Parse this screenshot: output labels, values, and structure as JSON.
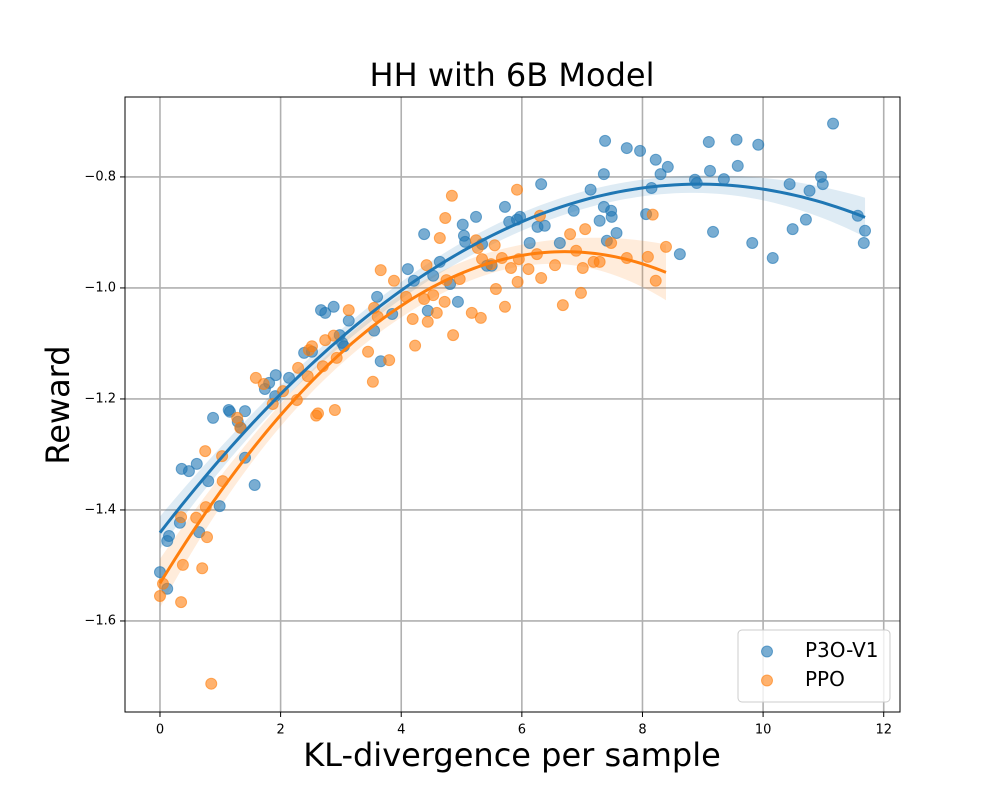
{
  "chart_data": {
    "type": "scatter",
    "title": "HH with 6B Model",
    "x_label": "KL-divergence per sample",
    "y_label": "Reward",
    "xlim": [
      -0.58,
      12.27
    ],
    "ylim": [
      -1.764,
      -0.656
    ],
    "xticks": [
      0,
      2,
      4,
      6,
      8,
      10,
      12
    ],
    "yticks": [
      {
        "value": -1.6,
        "label": "−1.6"
      },
      {
        "value": -1.4,
        "label": "−1.4"
      },
      {
        "value": -1.2,
        "label": "−1.2"
      },
      {
        "value": -1.0,
        "label": "−1.0"
      },
      {
        "value": -0.8,
        "label": "−0.8"
      }
    ],
    "grid": true,
    "legend_position": "lower right",
    "series": [
      {
        "name": "P3O-V1",
        "color": "#1f77b4",
        "x": [
          0,
          0.12,
          0.15,
          0.12,
          0.33,
          0.36,
          0.48,
          0.61,
          0.65,
          0.8,
          0.88,
          0.99,
          1.14,
          1.16,
          1.29,
          1.34,
          1.41,
          1.41,
          1.57,
          1.74,
          1.81,
          1.91,
          1.92,
          2.14,
          2.39,
          2.52,
          2.67,
          2.74,
          2.88,
          2.98,
          3.02,
          3.05,
          3.13,
          3.55,
          3.6,
          3.66,
          3.85,
          4.11,
          4.21,
          4.38,
          4.44,
          4.53,
          4.64,
          4.81,
          4.94,
          5.02,
          5.04,
          5.06,
          5.24,
          5.34,
          5.42,
          5.5,
          5.72,
          5.79,
          5.92,
          5.97,
          6.13,
          6.26,
          6.32,
          6.38,
          6.63,
          6.86,
          7.14,
          7.29,
          7.36,
          7.38,
          7.36,
          7.41,
          7.48,
          7.49,
          7.57,
          7.74,
          7.96,
          8.06,
          8.15,
          8.22,
          8.3,
          8.42,
          8.62,
          8.87,
          8.9,
          9.1,
          9.12,
          9.17,
          9.35,
          9.56,
          9.58,
          9.82,
          9.92,
          10.16,
          10.44,
          10.49,
          10.71,
          10.77,
          10.96,
          10.99,
          11.16,
          11.57,
          11.69,
          11.67
        ],
        "values": [
          -1.512,
          -1.456,
          -1.447,
          -1.542,
          -1.423,
          -1.326,
          -1.33,
          -1.317,
          -1.44,
          -1.348,
          -1.234,
          -1.393,
          -1.22,
          -1.223,
          -1.241,
          -1.252,
          -1.306,
          -1.222,
          -1.355,
          -1.182,
          -1.171,
          -1.195,
          -1.157,
          -1.162,
          -1.117,
          -1.115,
          -1.04,
          -1.045,
          -1.034,
          -1.085,
          -1.099,
          -1.105,
          -1.059,
          -1.077,
          -1.016,
          -1.132,
          -1.047,
          -0.966,
          -0.987,
          -0.903,
          -1.041,
          -0.978,
          -0.953,
          -0.993,
          -1.025,
          -0.886,
          -0.906,
          -0.917,
          -0.872,
          -0.921,
          -0.96,
          -0.96,
          -0.854,
          -0.881,
          -0.877,
          -0.872,
          -0.919,
          -0.89,
          -0.813,
          -0.888,
          -0.919,
          -0.861,
          -0.823,
          -0.879,
          -0.795,
          -0.735,
          -0.854,
          -0.915,
          -0.861,
          -0.872,
          -0.901,
          -0.748,
          -0.753,
          -0.867,
          -0.82,
          -0.769,
          -0.795,
          -0.782,
          -0.939,
          -0.805,
          -0.811,
          -0.737,
          -0.789,
          -0.899,
          -0.804,
          -0.733,
          -0.78,
          -0.919,
          -0.742,
          -0.946,
          -0.813,
          -0.894,
          -0.877,
          -0.825,
          -0.8,
          -0.813,
          -0.704,
          -0.87,
          -0.897,
          -0.919
        ]
      },
      {
        "name": "PPO",
        "color": "#ff7f0e",
        "x": [
          0,
          0.05,
          0.35,
          0.35,
          0.38,
          0.6,
          0.7,
          0.75,
          0.76,
          0.78,
          0.85,
          1.03,
          1.04,
          1.28,
          1.33,
          1.59,
          1.72,
          1.87,
          2.04,
          2.27,
          2.29,
          2.45,
          2.47,
          2.52,
          2.59,
          2.62,
          2.7,
          2.74,
          2.88,
          2.9,
          2.93,
          3.13,
          3.45,
          3.53,
          3.55,
          3.61,
          3.66,
          3.8,
          3.88,
          4.08,
          4.19,
          4.23,
          4.38,
          4.42,
          4.44,
          4.53,
          4.59,
          4.64,
          4.72,
          4.73,
          4.75,
          4.84,
          4.86,
          4.97,
          5.17,
          5.24,
          5.27,
          5.32,
          5.34,
          5.49,
          5.55,
          5.57,
          5.67,
          5.72,
          5.82,
          5.92,
          5.93,
          5.95,
          6.11,
          6.25,
          6.3,
          6.32,
          6.55,
          6.68,
          6.8,
          6.9,
          6.98,
          7.01,
          7.05,
          7.19,
          7.29,
          7.48,
          7.74,
          8.09,
          8.17,
          8.22,
          8.39
        ],
        "values": [
          -1.555,
          -1.533,
          -1.413,
          -1.566,
          -1.499,
          -1.414,
          -1.505,
          -1.294,
          -1.395,
          -1.449,
          -1.713,
          -1.303,
          -1.348,
          -1.234,
          -1.252,
          -1.162,
          -1.173,
          -1.209,
          -1.186,
          -1.202,
          -1.144,
          -1.159,
          -1.112,
          -1.105,
          -1.23,
          -1.226,
          -1.141,
          -1.094,
          -1.086,
          -1.22,
          -1.126,
          -1.04,
          -1.115,
          -1.169,
          -1.036,
          -1.052,
          -0.968,
          -1.13,
          -0.987,
          -1.016,
          -1.056,
          -1.104,
          -1.02,
          -0.959,
          -1.061,
          -1.013,
          -1.045,
          -0.91,
          -1.025,
          -0.874,
          -0.986,
          -0.834,
          -1.085,
          -0.984,
          -1.045,
          -0.914,
          -0.928,
          -1.054,
          -0.948,
          -0.957,
          -0.923,
          -1.002,
          -0.946,
          -1.034,
          -0.964,
          -0.823,
          -0.989,
          -0.948,
          -0.966,
          -0.939,
          -0.87,
          -0.982,
          -0.959,
          -1.031,
          -0.903,
          -0.933,
          -1.009,
          -0.964,
          -0.894,
          -0.953,
          -0.953,
          -0.919,
          -0.946,
          -0.944,
          -0.868,
          -0.987,
          -0.926
        ]
      }
    ]
  }
}
